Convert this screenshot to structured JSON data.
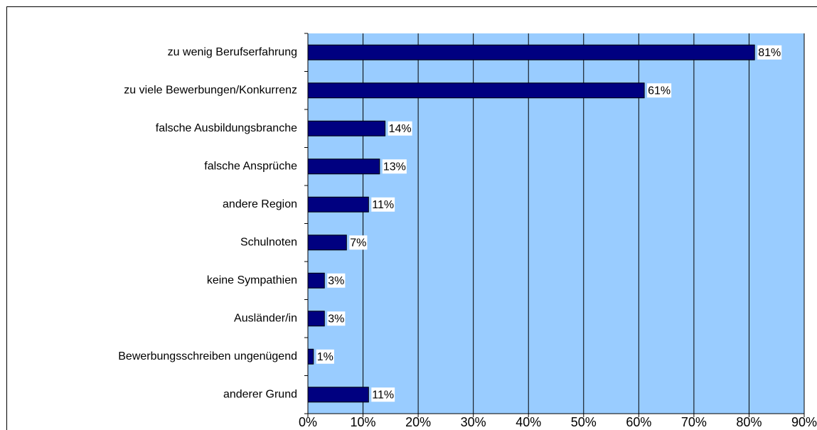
{
  "chart_data": {
    "type": "bar",
    "orientation": "horizontal",
    "categories": [
      "zu wenig Berufserfahrung",
      "zu viele Bewerbungen/Konkurrenz",
      "falsche Ausbildungsbranche",
      "falsche Ansprüche",
      "andere Region",
      "Schulnoten",
      "keine Sympathien",
      "Ausländer/in",
      "Bewerbungsschreiben ungenügend",
      "anderer Grund"
    ],
    "values": [
      81,
      61,
      14,
      13,
      11,
      7,
      3,
      3,
      1,
      11
    ],
    "value_labels": [
      "81%",
      "61%",
      "14%",
      "13%",
      "11%",
      "7%",
      "3%",
      "3%",
      "1%",
      "11%"
    ],
    "color": "#000080",
    "xlim": [
      0,
      90
    ],
    "xticks": [
      {
        "value": 0,
        "label": "0%"
      },
      {
        "value": 10,
        "label": "10%"
      },
      {
        "value": 20,
        "label": "20%"
      },
      {
        "value": 30,
        "label": "30%"
      },
      {
        "value": 40,
        "label": "40%"
      },
      {
        "value": 50,
        "label": "50%"
      },
      {
        "value": 60,
        "label": "60%"
      },
      {
        "value": 70,
        "label": "70%"
      },
      {
        "value": 80,
        "label": "80%"
      },
      {
        "value": 90,
        "label": "90%"
      }
    ],
    "grid": true,
    "plot_background": "#99ccff"
  }
}
